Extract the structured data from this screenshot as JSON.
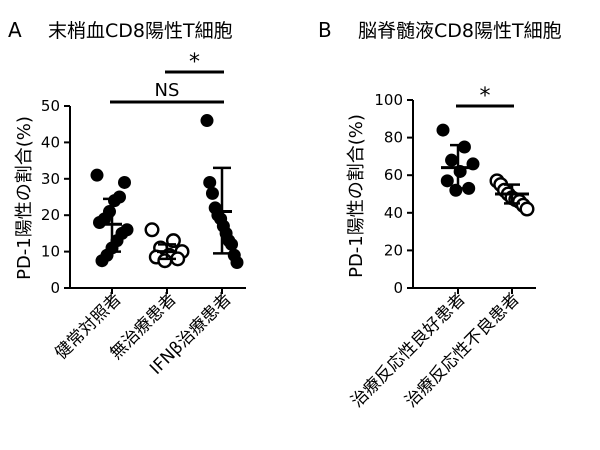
{
  "chart_data": [
    {
      "type": "scatter",
      "panel_letter": "A",
      "title": "末梢血CD8陽性T細胞",
      "ylabel": "PD-1陽性の割合(%)",
      "xlabel": "",
      "ylim": [
        0,
        50
      ],
      "yticks": [
        "0",
        "10",
        "20",
        "30",
        "40",
        "50"
      ],
      "categories": [
        "健常対照者",
        "無治療患者",
        "IFNβ治療患者"
      ],
      "series": [
        {
          "marker": "filled",
          "values": [
            31,
            29,
            25,
            24,
            21,
            19,
            18,
            16,
            15,
            13,
            11,
            9,
            7.5
          ]
        },
        {
          "marker": "open",
          "values": [
            16,
            13,
            11,
            10,
            9,
            8.5,
            8,
            7.5
          ]
        },
        {
          "marker": "filled",
          "values": [
            46,
            29,
            26,
            22,
            20,
            19,
            17,
            15,
            13,
            12,
            9,
            7
          ]
        }
      ],
      "mean": [
        17.5,
        10,
        21
      ],
      "sd_low": [
        10,
        8,
        9.5
      ],
      "sd_high": [
        24.5,
        12,
        33
      ],
      "annotations": [
        {
          "text": "NS",
          "from": 0,
          "to": 2
        },
        {
          "text": "*",
          "from": 1,
          "to": 2
        }
      ]
    },
    {
      "type": "scatter",
      "panel_letter": "B",
      "title": "脳脊髄液CD8陽性T細胞",
      "ylabel": "PD-1陽性の割合(%)",
      "xlabel": "",
      "ylim": [
        0,
        100
      ],
      "yticks": [
        "0",
        "20",
        "40",
        "60",
        "80",
        "100"
      ],
      "categories": [
        "治療反応性良好患者",
        "治療反応性不良患者"
      ],
      "series": [
        {
          "marker": "filled",
          "values": [
            84,
            75,
            68,
            66,
            62,
            57,
            53,
            52
          ]
        },
        {
          "marker": "open",
          "values": [
            57,
            55,
            52,
            50,
            48,
            47,
            46,
            44,
            42
          ]
        }
      ],
      "mean": [
        64,
        50
      ],
      "sd_low": [
        53,
        45
      ],
      "sd_high": [
        76,
        55
      ],
      "annotations": [
        {
          "text": "*",
          "from": 0,
          "to": 1
        }
      ]
    }
  ]
}
